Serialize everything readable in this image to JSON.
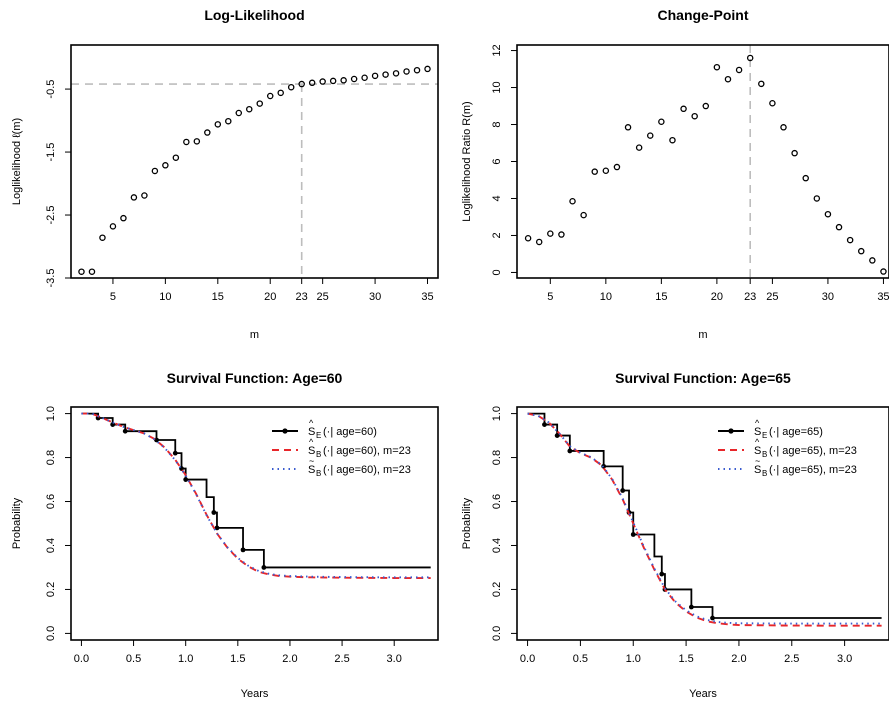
{
  "chart_data": [
    {
      "type": "scatter",
      "title": "Log-Likelihood",
      "xlabel": "m",
      "ylabel": "Loglikelihood ℓ(m)",
      "xlim": [
        1,
        36
      ],
      "ylim": [
        -3.5,
        0.2
      ],
      "xticks": [
        "5",
        "10",
        "15",
        "20",
        "23",
        "25",
        "30",
        "35"
      ],
      "xtick_values": [
        5,
        10,
        15,
        20,
        23,
        25,
        30,
        35
      ],
      "yticks": [
        "-3.5",
        "-2.5",
        "-1.5",
        "-0.5"
      ],
      "ytick_values": [
        -3.5,
        -2.5,
        -1.5,
        -0.5
      ],
      "x": [
        2,
        3,
        4,
        5,
        6,
        7,
        8,
        9,
        10,
        11,
        12,
        13,
        14,
        15,
        16,
        17,
        18,
        19,
        20,
        21,
        22,
        23,
        24,
        25,
        26,
        27,
        28,
        29,
        30,
        31,
        32,
        33,
        34,
        35
      ],
      "y": [
        -3.4,
        -3.4,
        -2.86,
        -2.68,
        -2.55,
        -2.22,
        -2.19,
        -1.8,
        -1.71,
        -1.59,
        -1.34,
        -1.33,
        -1.19,
        -1.06,
        -1.01,
        -0.88,
        -0.82,
        -0.73,
        -0.61,
        -0.56,
        -0.47,
        -0.42,
        -0.4,
        -0.38,
        -0.37,
        -0.36,
        -0.34,
        -0.32,
        -0.29,
        -0.27,
        -0.25,
        -0.22,
        -0.2,
        -0.18
      ],
      "reference": {
        "x": 23,
        "y": -0.42,
        "style": "dashed",
        "color": "#bdbdbd"
      }
    },
    {
      "type": "scatter",
      "title": "Change-Point",
      "xlabel": "m",
      "ylabel": "Loglikelihood Ratio R(m)",
      "xlim": [
        2,
        35.5
      ],
      "ylim": [
        -0.3,
        12.3
      ],
      "xticks": [
        "5",
        "10",
        "15",
        "20",
        "23",
        "25",
        "30",
        "35"
      ],
      "xtick_values": [
        5,
        10,
        15,
        20,
        23,
        25,
        30,
        35
      ],
      "yticks": [
        "0",
        "2",
        "4",
        "6",
        "8",
        "10",
        "12"
      ],
      "ytick_values": [
        0,
        2,
        4,
        6,
        8,
        10,
        12
      ],
      "x": [
        3,
        4,
        5,
        6,
        7,
        8,
        9,
        10,
        11,
        12,
        13,
        14,
        15,
        16,
        17,
        18,
        19,
        20,
        21,
        22,
        23,
        24,
        25,
        26,
        27,
        28,
        29,
        30,
        31,
        32,
        33,
        34,
        35
      ],
      "y": [
        1.85,
        1.65,
        2.1,
        2.05,
        3.85,
        3.1,
        5.45,
        5.5,
        5.7,
        7.85,
        6.75,
        7.4,
        8.15,
        7.15,
        8.85,
        8.45,
        9.0,
        11.1,
        10.45,
        10.95,
        11.6,
        10.2,
        9.15,
        7.85,
        6.45,
        5.1,
        4.0,
        3.15,
        2.45,
        1.75,
        1.15,
        0.65,
        0.05
      ],
      "reference": {
        "x": 23,
        "style": "dashed",
        "color": "#bdbdbd"
      }
    },
    {
      "type": "line",
      "title": "Survival Function: Age=60",
      "xlabel": "Years",
      "ylabel": "Probability",
      "xlim": [
        -0.1,
        3.42
      ],
      "ylim": [
        -0.03,
        1.03
      ],
      "xticks": [
        "0.0",
        "0.5",
        "1.0",
        "1.5",
        "2.0",
        "2.5",
        "3.0"
      ],
      "xtick_values": [
        0,
        0.5,
        1.0,
        1.5,
        2.0,
        2.5,
        3.0
      ],
      "yticks": [
        "0.0",
        "0.2",
        "0.4",
        "0.6",
        "0.8",
        "1.0"
      ],
      "ytick_values": [
        0,
        0.2,
        0.4,
        0.6,
        0.8,
        1.0
      ],
      "series": [
        {
          "name": "age=60",
          "kind": "step",
          "color": "#000000",
          "points": [
            [
              0,
              1.0
            ],
            [
              0.16,
              0.98
            ],
            [
              0.3,
              0.95
            ],
            [
              0.42,
              0.92
            ],
            [
              0.72,
              0.88
            ],
            [
              0.9,
              0.82
            ],
            [
              0.96,
              0.75
            ],
            [
              1.0,
              0.7
            ],
            [
              1.2,
              0.62
            ],
            [
              1.27,
              0.55
            ],
            [
              1.3,
              0.48
            ],
            [
              1.55,
              0.38
            ],
            [
              1.75,
              0.3
            ],
            [
              2.05,
              0.3
            ],
            [
              3.35,
              0.3
            ]
          ],
          "markers": [
            [
              0.16,
              0.98
            ],
            [
              0.3,
              0.95
            ],
            [
              0.42,
              0.92
            ],
            [
              0.72,
              0.88
            ],
            [
              0.9,
              0.82
            ],
            [
              0.96,
              0.75
            ],
            [
              1.0,
              0.7
            ],
            [
              1.27,
              0.55
            ],
            [
              1.3,
              0.48
            ],
            [
              1.55,
              0.38
            ],
            [
              1.75,
              0.3
            ]
          ]
        },
        {
          "name": "age=60",
          "kind": "curve",
          "color": "#e8262a",
          "dash": "7,5",
          "points": [
            [
              0,
              1.0
            ],
            [
              0.1,
              1.0
            ],
            [
              0.2,
              0.98
            ],
            [
              0.3,
              0.96
            ],
            [
              0.4,
              0.94
            ],
            [
              0.5,
              0.925
            ],
            [
              0.6,
              0.91
            ],
            [
              0.7,
              0.885
            ],
            [
              0.8,
              0.845
            ],
            [
              0.9,
              0.79
            ],
            [
              1.0,
              0.72
            ],
            [
              1.1,
              0.635
            ],
            [
              1.2,
              0.54
            ],
            [
              1.3,
              0.455
            ],
            [
              1.4,
              0.39
            ],
            [
              1.5,
              0.34
            ],
            [
              1.6,
              0.305
            ],
            [
              1.7,
              0.28
            ],
            [
              1.8,
              0.268
            ],
            [
              1.9,
              0.261
            ],
            [
              2.0,
              0.258
            ],
            [
              2.2,
              0.255
            ],
            [
              2.6,
              0.253
            ],
            [
              3.0,
              0.252
            ],
            [
              3.35,
              0.252
            ]
          ]
        },
        {
          "name": "age=60",
          "kind": "curve",
          "color": "#3a5bcf",
          "dash": "1.5,4",
          "points": [
            [
              0,
              1.0
            ],
            [
              0.1,
              1.0
            ],
            [
              0.2,
              0.98
            ],
            [
              0.3,
              0.96
            ],
            [
              0.4,
              0.94
            ],
            [
              0.5,
              0.925
            ],
            [
              0.6,
              0.91
            ],
            [
              0.7,
              0.883
            ],
            [
              0.8,
              0.843
            ],
            [
              0.9,
              0.788
            ],
            [
              1.0,
              0.718
            ],
            [
              1.1,
              0.633
            ],
            [
              1.2,
              0.538
            ],
            [
              1.3,
              0.455
            ],
            [
              1.4,
              0.392
            ],
            [
              1.5,
              0.343
            ],
            [
              1.6,
              0.308
            ],
            [
              1.7,
              0.284
            ],
            [
              1.8,
              0.271
            ],
            [
              1.9,
              0.264
            ],
            [
              2.0,
              0.261
            ],
            [
              2.2,
              0.258
            ],
            [
              2.6,
              0.256
            ],
            [
              3.0,
              0.255
            ],
            [
              3.35,
              0.255
            ]
          ]
        }
      ],
      "legend": {
        "position": "top-right",
        "entries": [
          {
            "hat": "^",
            "sub": "E",
            "text": "(·| age=60)"
          },
          {
            "hat": "^",
            "sub": "B",
            "text": "(·| age=60), m=23"
          },
          {
            "hat": "~",
            "sub": "B",
            "text": "(·| age=60), m=23"
          }
        ]
      }
    },
    {
      "type": "line",
      "title": "Survival Function: Age=65",
      "xlabel": "Years",
      "ylabel": "Probability",
      "xlim": [
        -0.1,
        3.42
      ],
      "ylim": [
        -0.03,
        1.03
      ],
      "xticks": [
        "0.0",
        "0.5",
        "1.0",
        "1.5",
        "2.0",
        "2.5",
        "3.0"
      ],
      "xtick_values": [
        0,
        0.5,
        1.0,
        1.5,
        2.0,
        2.5,
        3.0
      ],
      "yticks": [
        "0.0",
        "0.2",
        "0.4",
        "0.6",
        "0.8",
        "1.0"
      ],
      "ytick_values": [
        0,
        0.2,
        0.4,
        0.6,
        0.8,
        1.0
      ],
      "series": [
        {
          "name": "age=65",
          "kind": "step",
          "color": "#000000",
          "points": [
            [
              0,
              1.0
            ],
            [
              0.16,
              0.95
            ],
            [
              0.28,
              0.9
            ],
            [
              0.4,
              0.83
            ],
            [
              0.72,
              0.76
            ],
            [
              0.9,
              0.65
            ],
            [
              0.96,
              0.55
            ],
            [
              1.0,
              0.45
            ],
            [
              1.2,
              0.35
            ],
            [
              1.27,
              0.27
            ],
            [
              1.3,
              0.2
            ],
            [
              1.55,
              0.12
            ],
            [
              1.75,
              0.07
            ],
            [
              2.05,
              0.07
            ],
            [
              3.35,
              0.07
            ]
          ],
          "markers": [
            [
              0.16,
              0.95
            ],
            [
              0.28,
              0.9
            ],
            [
              0.4,
              0.83
            ],
            [
              0.72,
              0.76
            ],
            [
              0.9,
              0.65
            ],
            [
              0.96,
              0.55
            ],
            [
              1.0,
              0.45
            ],
            [
              1.27,
              0.27
            ],
            [
              1.3,
              0.2
            ],
            [
              1.55,
              0.12
            ],
            [
              1.75,
              0.07
            ]
          ]
        },
        {
          "name": "age=65",
          "kind": "curve",
          "color": "#e8262a",
          "dash": "7,5",
          "points": [
            [
              0,
              1.0
            ],
            [
              0.1,
              0.99
            ],
            [
              0.2,
              0.96
            ],
            [
              0.3,
              0.91
            ],
            [
              0.4,
              0.85
            ],
            [
              0.5,
              0.82
            ],
            [
              0.6,
              0.8
            ],
            [
              0.7,
              0.765
            ],
            [
              0.8,
              0.7
            ],
            [
              0.9,
              0.61
            ],
            [
              1.0,
              0.5
            ],
            [
              1.1,
              0.39
            ],
            [
              1.2,
              0.29
            ],
            [
              1.3,
              0.2
            ],
            [
              1.4,
              0.14
            ],
            [
              1.5,
              0.1
            ],
            [
              1.6,
              0.072
            ],
            [
              1.7,
              0.055
            ],
            [
              1.8,
              0.046
            ],
            [
              1.9,
              0.041
            ],
            [
              2.0,
              0.038
            ],
            [
              2.4,
              0.036
            ],
            [
              3.0,
              0.035
            ],
            [
              3.35,
              0.035
            ]
          ]
        },
        {
          "name": "age=65",
          "kind": "curve",
          "color": "#3a5bcf",
          "dash": "1.5,4",
          "points": [
            [
              0,
              1.0
            ],
            [
              0.1,
              0.99
            ],
            [
              0.2,
              0.96
            ],
            [
              0.3,
              0.91
            ],
            [
              0.4,
              0.852
            ],
            [
              0.5,
              0.822
            ],
            [
              0.6,
              0.802
            ],
            [
              0.7,
              0.767
            ],
            [
              0.8,
              0.703
            ],
            [
              0.9,
              0.614
            ],
            [
              1.0,
              0.505
            ],
            [
              1.1,
              0.395
            ],
            [
              1.2,
              0.295
            ],
            [
              1.3,
              0.205
            ],
            [
              1.4,
              0.145
            ],
            [
              1.5,
              0.105
            ],
            [
              1.6,
              0.078
            ],
            [
              1.7,
              0.061
            ],
            [
              1.8,
              0.052
            ],
            [
              1.9,
              0.048
            ],
            [
              2.0,
              0.046
            ],
            [
              2.4,
              0.045
            ],
            [
              3.0,
              0.045
            ],
            [
              3.35,
              0.045
            ]
          ]
        }
      ],
      "legend": {
        "position": "top-right",
        "entries": [
          {
            "hat": "^",
            "sub": "E",
            "text": "(·| age=65)"
          },
          {
            "hat": "^",
            "sub": "B",
            "text": "(·| age=65), m=23"
          },
          {
            "hat": "~",
            "sub": "B",
            "text": "(·| age=65), m=23"
          }
        ]
      }
    }
  ]
}
